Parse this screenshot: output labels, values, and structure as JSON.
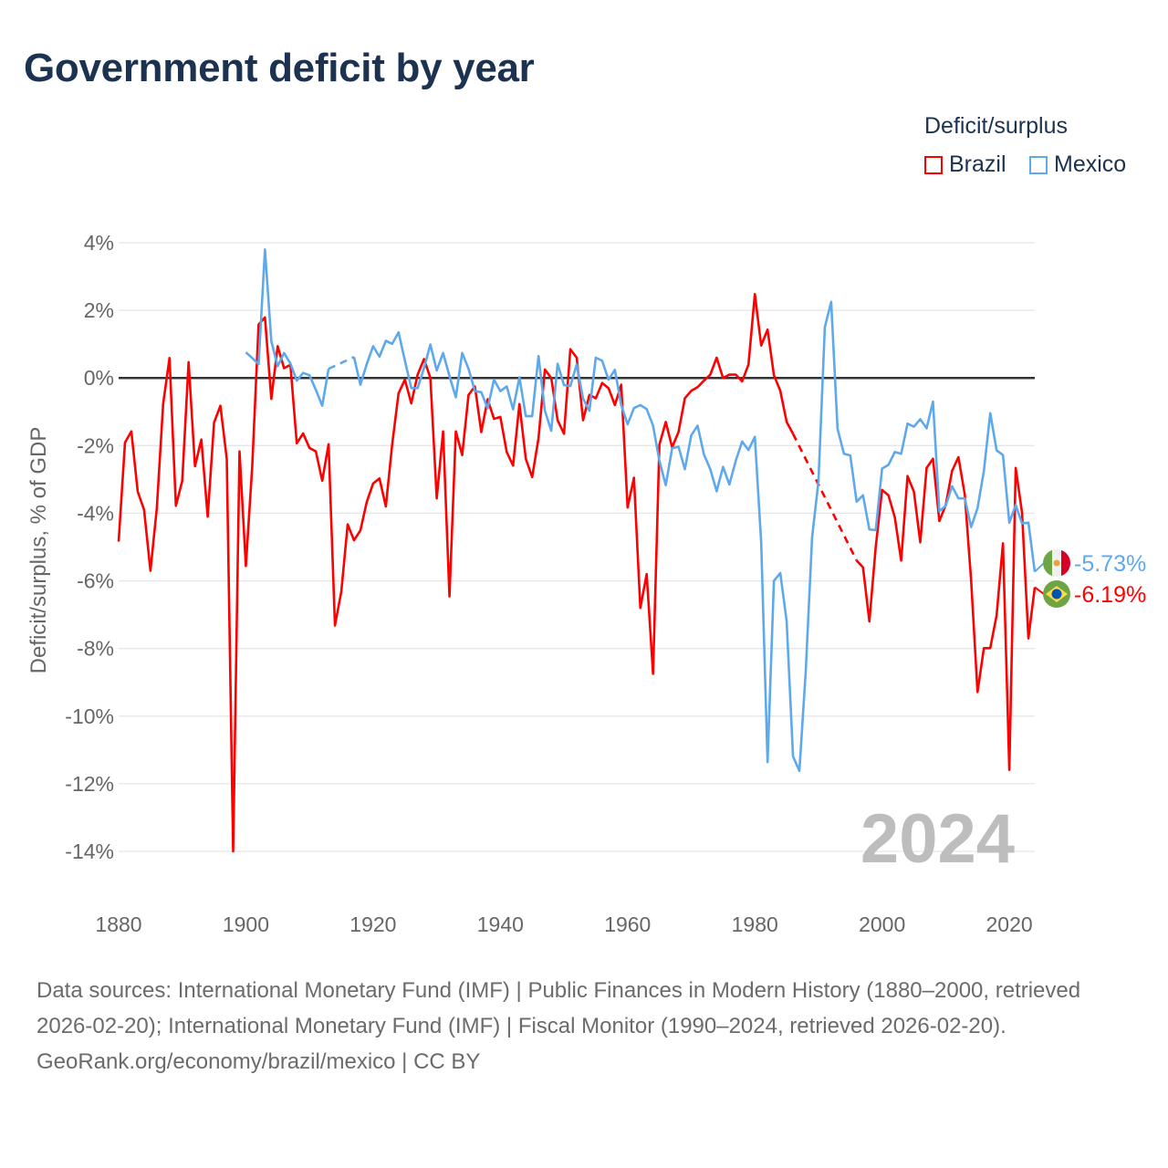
{
  "title": "Government deficit by year",
  "legend": {
    "title": "Deficit/surplus",
    "items": [
      {
        "label": "Brazil",
        "color": "#ff0000"
      },
      {
        "label": "Mexico",
        "color": "#5ea8ec"
      }
    ]
  },
  "year_watermark": "2024",
  "footer": {
    "sources": "Data sources: International Monetary Fund (IMF) | Public Finances in Modern History (1880–2000, retrieved 2026-02-20); International Monetary Fund (IMF) | Fiscal Monitor (1990–2024, retrieved 2026-02-20).",
    "credit": "GeoRank.org/economy/brazil/mexico | CC BY"
  },
  "chart_data": {
    "type": "line",
    "title": "Government deficit by year",
    "xlabel": "",
    "ylabel": "Deficit/surplus, % of GDP",
    "xlim": [
      1880,
      2024
    ],
    "ylim": [
      -14,
      4
    ],
    "x_ticks": [
      1880,
      1900,
      1920,
      1940,
      1960,
      1980,
      2000,
      2020
    ],
    "x_tick_labels": [
      "1880",
      "1900",
      "1920",
      "1940",
      "1960",
      "1980",
      "2000",
      "2020"
    ],
    "y_ticks": [
      4,
      2,
      0,
      -2,
      -4,
      -6,
      -8,
      -10,
      -12,
      -14
    ],
    "y_tick_labels": [
      "4%",
      "2%",
      "0%",
      "-2%",
      "-4%",
      "-6%",
      "-8%",
      "-10%",
      "-12%",
      "-14%"
    ],
    "grid": true,
    "legend_position": "top-right",
    "gaps_drawn_dashed": true,
    "series": [
      {
        "name": "Brazil",
        "color": "#ff0000",
        "start_year": 1880,
        "end_label": "-6.19%",
        "values": [
          -4.84,
          -1.91,
          -1.58,
          -3.36,
          -3.9,
          -5.7,
          -3.86,
          -0.76,
          0.59,
          -3.78,
          -3.04,
          0.47,
          -2.61,
          -1.82,
          -4.1,
          -1.32,
          -0.82,
          -2.4,
          -14.0,
          -2.17,
          -5.56,
          -2.61,
          1.58,
          1.79,
          -0.62,
          0.94,
          0.29,
          0.39,
          -1.93,
          -1.64,
          -2.07,
          -2.17,
          -3.04,
          -1.96,
          -7.32,
          -6.32,
          -4.33,
          -4.8,
          -4.51,
          -3.67,
          -3.12,
          -2.97,
          -3.8,
          -1.96,
          -0.45,
          -0.05,
          -0.75,
          0.1,
          0.56,
          0,
          -3.56,
          -1.58,
          -6.46,
          -1.58,
          -2.28,
          -0.5,
          -0.25,
          -1.6,
          -0.63,
          -1.21,
          -1.15,
          -2.19,
          -2.59,
          -0.77,
          -2.39,
          -2.93,
          -1.78,
          0.25,
          0,
          -1.25,
          -1.65,
          0.85,
          0.6,
          -1.25,
          -0.5,
          -0.6,
          -0.15,
          -0.3,
          -0.8,
          -0.2,
          -3.83,
          -2.95,
          -6.8,
          -5.8,
          -8.75,
          -1.97,
          -1.3,
          -2.05,
          -1.6,
          -0.6,
          -0.38,
          -0.27,
          -0.08,
          0.1,
          0.6,
          0,
          0.1,
          0.1,
          -0.1,
          0.4,
          2.48,
          0.96,
          1.43,
          0.08,
          -0.38,
          -1.3,
          -1.65,
          null,
          null,
          null,
          null,
          null,
          null,
          null,
          null,
          null,
          -5.4,
          -5.6,
          -7.2,
          -5.0,
          -3.31,
          -3.47,
          -4.12,
          -5.4,
          -2.9,
          -3.36,
          -4.86,
          -2.66,
          -2.39,
          -4.23,
          -3.76,
          -2.75,
          -2.34,
          -3.45,
          -6.0,
          -9.29,
          -7.99,
          -7.99,
          -7.02,
          -4.89,
          -11.59,
          -2.66,
          -3.99,
          -7.7,
          -6.19
        ]
      },
      {
        "name": "Mexico",
        "color": "#5ea8ec",
        "start_year": 1900,
        "end_label": "-5.73%",
        "values": [
          0.76,
          0.59,
          0.41,
          3.8,
          1.09,
          0.35,
          0.74,
          0.43,
          -0.08,
          0.15,
          0.08,
          -0.35,
          -0.82,
          0.27,
          null,
          null,
          null,
          0.62,
          -0.2,
          0.41,
          0.94,
          0.63,
          1.1,
          1.01,
          1.35,
          0.51,
          -0.3,
          -0.3,
          0.29,
          0.99,
          0.22,
          0.74,
          0.06,
          -0.57,
          0.74,
          0.27,
          -0.39,
          -0.42,
          -0.9,
          -0.05,
          -0.39,
          -0.25,
          -0.93,
          0.02,
          -1.13,
          -1.13,
          0.65,
          -0.97,
          -1.56,
          0.42,
          -0.21,
          -0.24,
          0.4,
          -0.61,
          -0.97,
          0.6,
          0.51,
          -0.05,
          0.24,
          -0.8,
          -1.37,
          -0.89,
          -0.8,
          -0.92,
          -1.41,
          -2.45,
          -3.17,
          -2.08,
          -2.03,
          -2.7,
          -1.7,
          -1.41,
          -2.26,
          -2.7,
          -3.35,
          -2.63,
          -3.15,
          -2.45,
          -1.88,
          -2.13,
          -1.74,
          -4.87,
          -11.36,
          -6.0,
          -5.77,
          -7.19,
          -11.19,
          -11.62,
          -8.68,
          -4.71,
          -3.06,
          1.5,
          2.25,
          -1.5,
          -2.24,
          -2.29,
          -3.66,
          -3.47,
          -4.48,
          -4.5,
          -2.68,
          -2.57,
          -2.19,
          -2.24,
          -1.35,
          -1.44,
          -1.22,
          -1.49,
          -0.7,
          -3.94,
          -3.78,
          -3.2,
          -3.56,
          -3.56,
          -4.41,
          -3.85,
          -2.75,
          -1.04,
          -2.14,
          -2.28,
          -4.28,
          -3.76,
          -4.3,
          -4.28,
          -5.73
        ]
      }
    ]
  }
}
